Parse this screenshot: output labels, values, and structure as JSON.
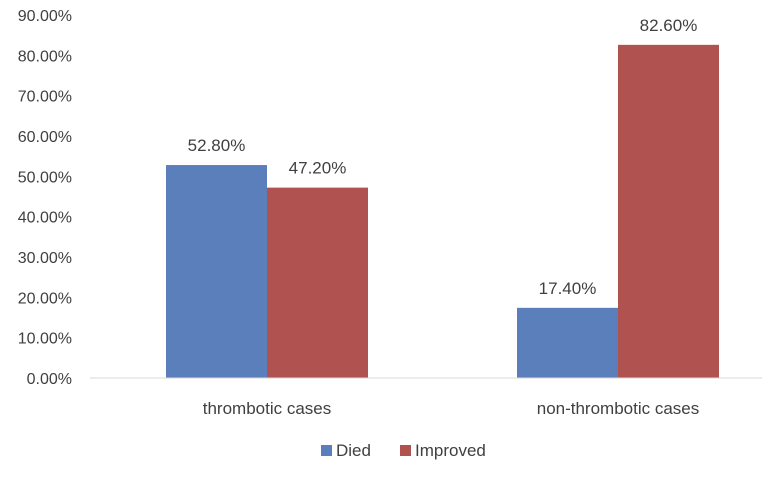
{
  "chart_data": {
    "type": "bar",
    "title": "",
    "xlabel": "",
    "ylabel": "",
    "categories": [
      "thrombotic cases",
      "non-thrombotic cases"
    ],
    "series": [
      {
        "name": "Died",
        "values": [
          52.8,
          17.4
        ],
        "labels": [
          "52.80%",
          "17.40%"
        ],
        "color": "#5B7FBA"
      },
      {
        "name": "Improved",
        "values": [
          47.2,
          82.6
        ],
        "labels": [
          "47.20%",
          "82.60%"
        ],
        "color": "#B0524F"
      }
    ],
    "ylim": [
      0,
      90
    ],
    "yticks": [
      0,
      10,
      20,
      30,
      40,
      50,
      60,
      70,
      80,
      90
    ],
    "ytick_labels": [
      "0.00%",
      "10.00%",
      "20.00%",
      "30.00%",
      "40.00%",
      "50.00%",
      "60.00%",
      "70.00%",
      "80.00%",
      "90.00%"
    ],
    "grid": false,
    "legend_position": "bottom"
  }
}
